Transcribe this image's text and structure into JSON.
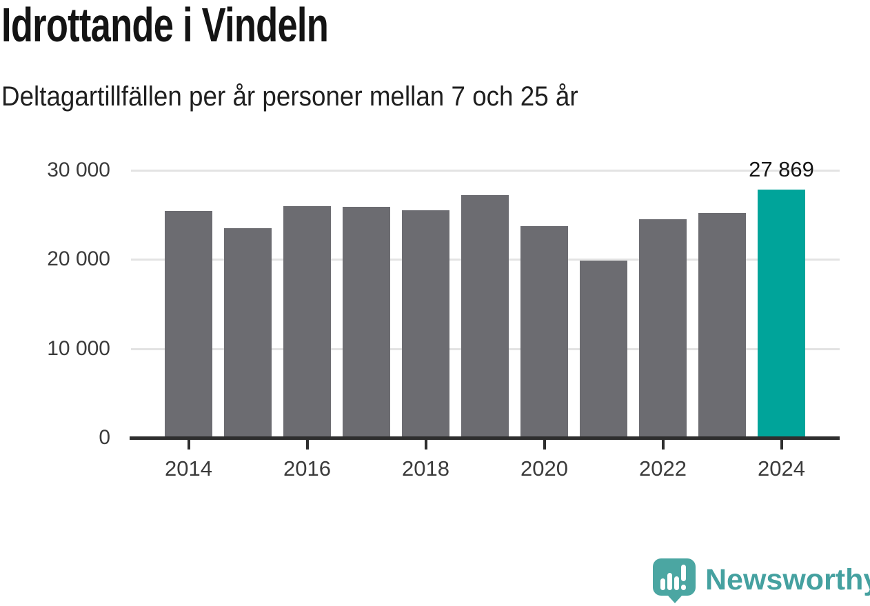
{
  "header": {
    "title": "Idrottande i Vindeln",
    "subtitle": "Deltagartillfällen per år personer mellan 7 och 25 år"
  },
  "chart_data": {
    "type": "bar",
    "title": "Idrottande i Vindeln",
    "subtitle": "Deltagartillfällen per år personer mellan 7 och 25 år",
    "categories": [
      "2014",
      "2015",
      "2016",
      "2017",
      "2018",
      "2019",
      "2020",
      "2021",
      "2022",
      "2023",
      "2024"
    ],
    "values": [
      25400,
      23500,
      26000,
      25900,
      25500,
      27200,
      23700,
      19900,
      24500,
      25200,
      27869
    ],
    "highlight_index": 10,
    "value_label": {
      "index": 10,
      "text": "27 869"
    },
    "ylim": [
      0,
      30000
    ],
    "y_ticks": [
      {
        "value": 0,
        "label": "0"
      },
      {
        "value": 10000,
        "label": "10 000"
      },
      {
        "value": 20000,
        "label": "20 000"
      },
      {
        "value": 30000,
        "label": "30 000"
      }
    ],
    "x_tick_years": [
      "2014",
      "2016",
      "2018",
      "2020",
      "2022",
      "2024"
    ],
    "grid": true,
    "legend": "none",
    "colors": {
      "bar": "#6c6c71",
      "highlight": "#00a49a",
      "gridline": "#e3e3e3",
      "axis": "#2e2e2e",
      "tick_text": "#3b3b3b"
    }
  },
  "footer": {
    "brand": "Newsworthy",
    "logo_icon": "newsworthy-speech-bubble-chart-icon",
    "brand_color": "#45a1a0",
    "logo_fill": "#4ba6a2"
  }
}
